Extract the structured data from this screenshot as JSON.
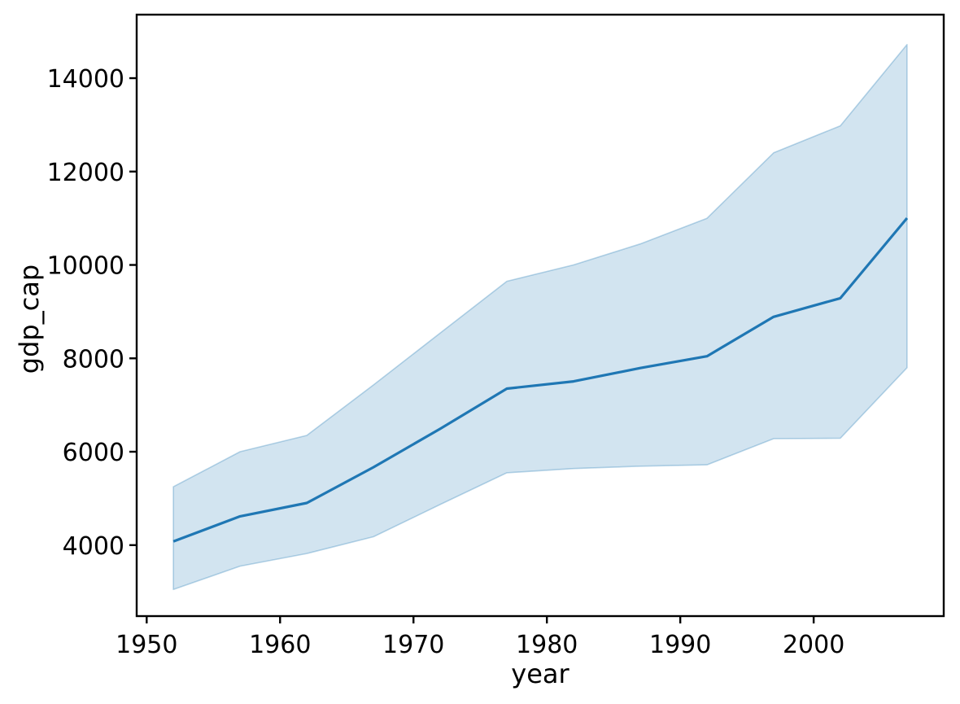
{
  "figure": {
    "background": "#ffffff"
  },
  "chart_data": {
    "type": "line",
    "title": "",
    "xlabel": "year",
    "ylabel": "gdp_cap",
    "x": [
      1952,
      1957,
      1962,
      1967,
      1972,
      1977,
      1982,
      1987,
      1992,
      1997,
      2002,
      2007
    ],
    "series": [
      {
        "name": "gdp_cap",
        "values": [
          4079,
          4616,
          4902,
          5668,
          6491,
          7352,
          7507,
          7793,
          8045,
          8889,
          9288,
          11003
        ]
      }
    ],
    "ci_band": {
      "lower": [
        3050,
        3550,
        3820,
        4180,
        4870,
        5550,
        5640,
        5690,
        5720,
        6280,
        6290,
        7800
      ],
      "upper": [
        5250,
        6000,
        6350,
        7430,
        8540,
        9650,
        10000,
        10450,
        11000,
        12400,
        12980,
        14720
      ]
    },
    "xlim": [
      1949.25,
      2009.75
    ],
    "ylim": [
      2480,
      15360
    ],
    "xticks": [
      1950,
      1960,
      1970,
      1980,
      1990,
      2000
    ],
    "yticks": [
      4000,
      6000,
      8000,
      10000,
      12000,
      14000
    ],
    "grid": false,
    "legend": "none",
    "colors": {
      "line": "#1f77b4",
      "band_fill": "rgba(31,119,180,0.20)",
      "band_edge": "rgba(31,119,180,0.30)",
      "axis": "#000000",
      "tick_label": "#000000"
    }
  }
}
